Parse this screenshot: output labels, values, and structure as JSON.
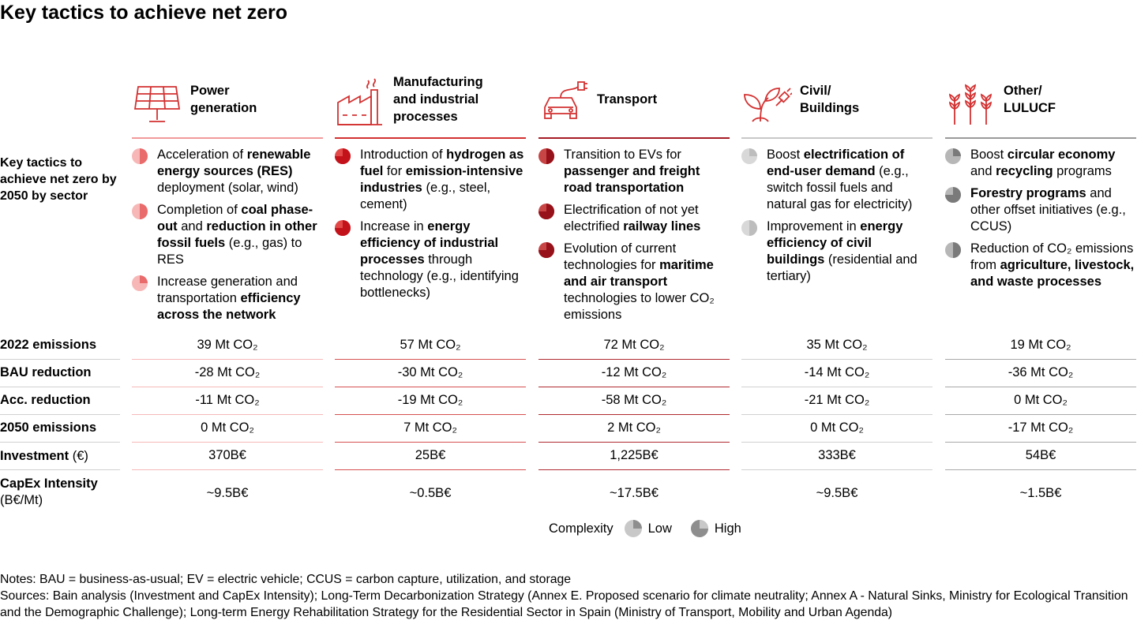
{
  "title": "Key tactics to achieve net zero",
  "tactics_label": "Key tactics to achieve net zero by 2050 by sector",
  "colors": {
    "red": "#d33131",
    "low": "#c8c8c8",
    "high": "#8e8e8e"
  },
  "row_labels": {
    "emissions_2022": "2022 emissions",
    "bau_reduction": "BAU reduction",
    "acc_reduction": "Acc. reduction",
    "emissions_2050": "2050 emissions",
    "investment": "Investment",
    "investment_unit": " (€)",
    "capex": "CapEx Intensity",
    "capex_unit": "(B€/Mt)"
  },
  "sectors": [
    {
      "icon": "solar-panel-icon",
      "title": "Power\ngeneration",
      "tactics": [
        {
          "complexity": "medium-low",
          "parts": [
            [
              "Acceleration of ",
              false
            ],
            [
              "renewable energy sources (RES)",
              true
            ],
            [
              " deployment (solar, wind)",
              false
            ]
          ]
        },
        {
          "complexity": "medium-low",
          "parts": [
            [
              "Completion of ",
              false
            ],
            [
              "coal phase-out",
              true
            ],
            [
              " and ",
              false
            ],
            [
              "reduction in other fossil fuels",
              true
            ],
            [
              " (e.g., gas) to RES",
              false
            ]
          ]
        },
        {
          "complexity": "low",
          "parts": [
            [
              "Increase generation and transportation ",
              false
            ],
            [
              "efficiency across the network",
              true
            ]
          ]
        }
      ],
      "emissions_2022": "39 Mt CO₂",
      "bau_reduction": "-28 Mt CO₂",
      "acc_reduction": "-11 Mt CO₂",
      "emissions_2050": "0 Mt CO₂",
      "investment": "370B€",
      "capex": "~9.5B€"
    },
    {
      "icon": "factory-icon",
      "title": "Manufacturing\nand industrial\nprocesses",
      "tactics": [
        {
          "complexity": "high",
          "parts": [
            [
              "Introduction of ",
              false
            ],
            [
              "hydrogen as fuel",
              true
            ],
            [
              " for ",
              false
            ],
            [
              "emission-intensive industries",
              true
            ],
            [
              " (e.g., steel, cement)",
              false
            ]
          ]
        },
        {
          "complexity": "medium-high",
          "parts": [
            [
              "Increase in ",
              false
            ],
            [
              "energy efficiency of industrial processes",
              true
            ],
            [
              " through technology (e.g., identifying bottlenecks)",
              false
            ]
          ]
        }
      ],
      "emissions_2022": "57 Mt CO₂",
      "bau_reduction": "-30 Mt CO₂",
      "acc_reduction": "-19 Mt CO₂",
      "emissions_2050": "7 Mt CO₂",
      "investment": "25B€",
      "capex": "~0.5B€"
    },
    {
      "icon": "electric-car-icon",
      "title": "Transport",
      "tactics": [
        {
          "complexity": "medium-low",
          "parts": [
            [
              "Transition to EVs for ",
              false
            ],
            [
              "passenger and freight road transportation",
              true
            ]
          ]
        },
        {
          "complexity": "high",
          "parts": [
            [
              "Electrification of not yet electrified ",
              false
            ],
            [
              "railway lines",
              true
            ]
          ]
        },
        {
          "complexity": "high",
          "parts": [
            [
              "Evolution of current technologies for ",
              false
            ],
            [
              "maritime and air transport",
              true
            ],
            [
              " technologies to lower CO₂ emissions",
              false
            ]
          ]
        }
      ],
      "emissions_2022": "72 Mt CO₂",
      "bau_reduction": "-12 Mt CO₂",
      "acc_reduction": "-58 Mt CO₂",
      "emissions_2050": "2 Mt CO₂",
      "investment": "1,225B€",
      "capex": "~17.5B€"
    },
    {
      "icon": "plant-plug-icon",
      "title": "Civil/\nBuildings",
      "tactics": [
        {
          "complexity": "low",
          "parts": [
            [
              "Boost ",
              false
            ],
            [
              "electrification of end-user demand",
              true
            ],
            [
              " (e.g., switch fossil fuels and natural gas for electricity)",
              false
            ]
          ]
        },
        {
          "complexity": "medium-low",
          "parts": [
            [
              "Improvement in ",
              false
            ],
            [
              "energy efficiency of civil buildings",
              true
            ],
            [
              " (residential and tertiary)",
              false
            ]
          ]
        }
      ],
      "emissions_2022": "35 Mt CO₂",
      "bau_reduction": "-14 Mt CO₂",
      "acc_reduction": "-21 Mt CO₂",
      "emissions_2050": "0 Mt CO₂",
      "investment": "333B€",
      "capex": "~9.5B€"
    },
    {
      "icon": "wheat-icon",
      "title": "Other/\nLULUCF",
      "tactics": [
        {
          "complexity": "low",
          "parts": [
            [
              "Boost ",
              false
            ],
            [
              "circular economy",
              true
            ],
            [
              " and ",
              false
            ],
            [
              "recycling",
              true
            ],
            [
              " programs",
              false
            ]
          ]
        },
        {
          "complexity": "medium-high",
          "parts": [
            [
              "Forestry programs",
              true
            ],
            [
              " and other offset initiatives (e.g., CCUS)",
              false
            ]
          ]
        },
        {
          "complexity": "medium-low",
          "parts": [
            [
              "Reduction of CO₂ emissions from ",
              false
            ],
            [
              "agriculture, livestock, and waste processes",
              true
            ]
          ]
        }
      ],
      "emissions_2022": "19 Mt CO₂",
      "bau_reduction": "-36 Mt CO₂",
      "acc_reduction": "0 Mt CO₂",
      "emissions_2050": "-17 Mt CO₂",
      "investment": "54B€",
      "capex": "~1.5B€"
    }
  ],
  "legend": {
    "title": "Complexity",
    "low": "Low",
    "high": "High"
  },
  "notes": "Notes: BAU = business-as-usual; EV = electric vehicle; CCUS = carbon capture, utilization, and storage",
  "sources": "Sources: Bain analysis (Investment and CapEx Intensity); Long-Term Decarbonization Strategy (Annex E. Proposed scenario for climate neutrality; Annex A - Natural Sinks, Ministry for Ecological Transition and the Demographic Challenge); Long-term Energy Rehabilitation Strategy for the Residential Sector in Spain (Ministry of Transport, Mobility and Urban Agenda)"
}
